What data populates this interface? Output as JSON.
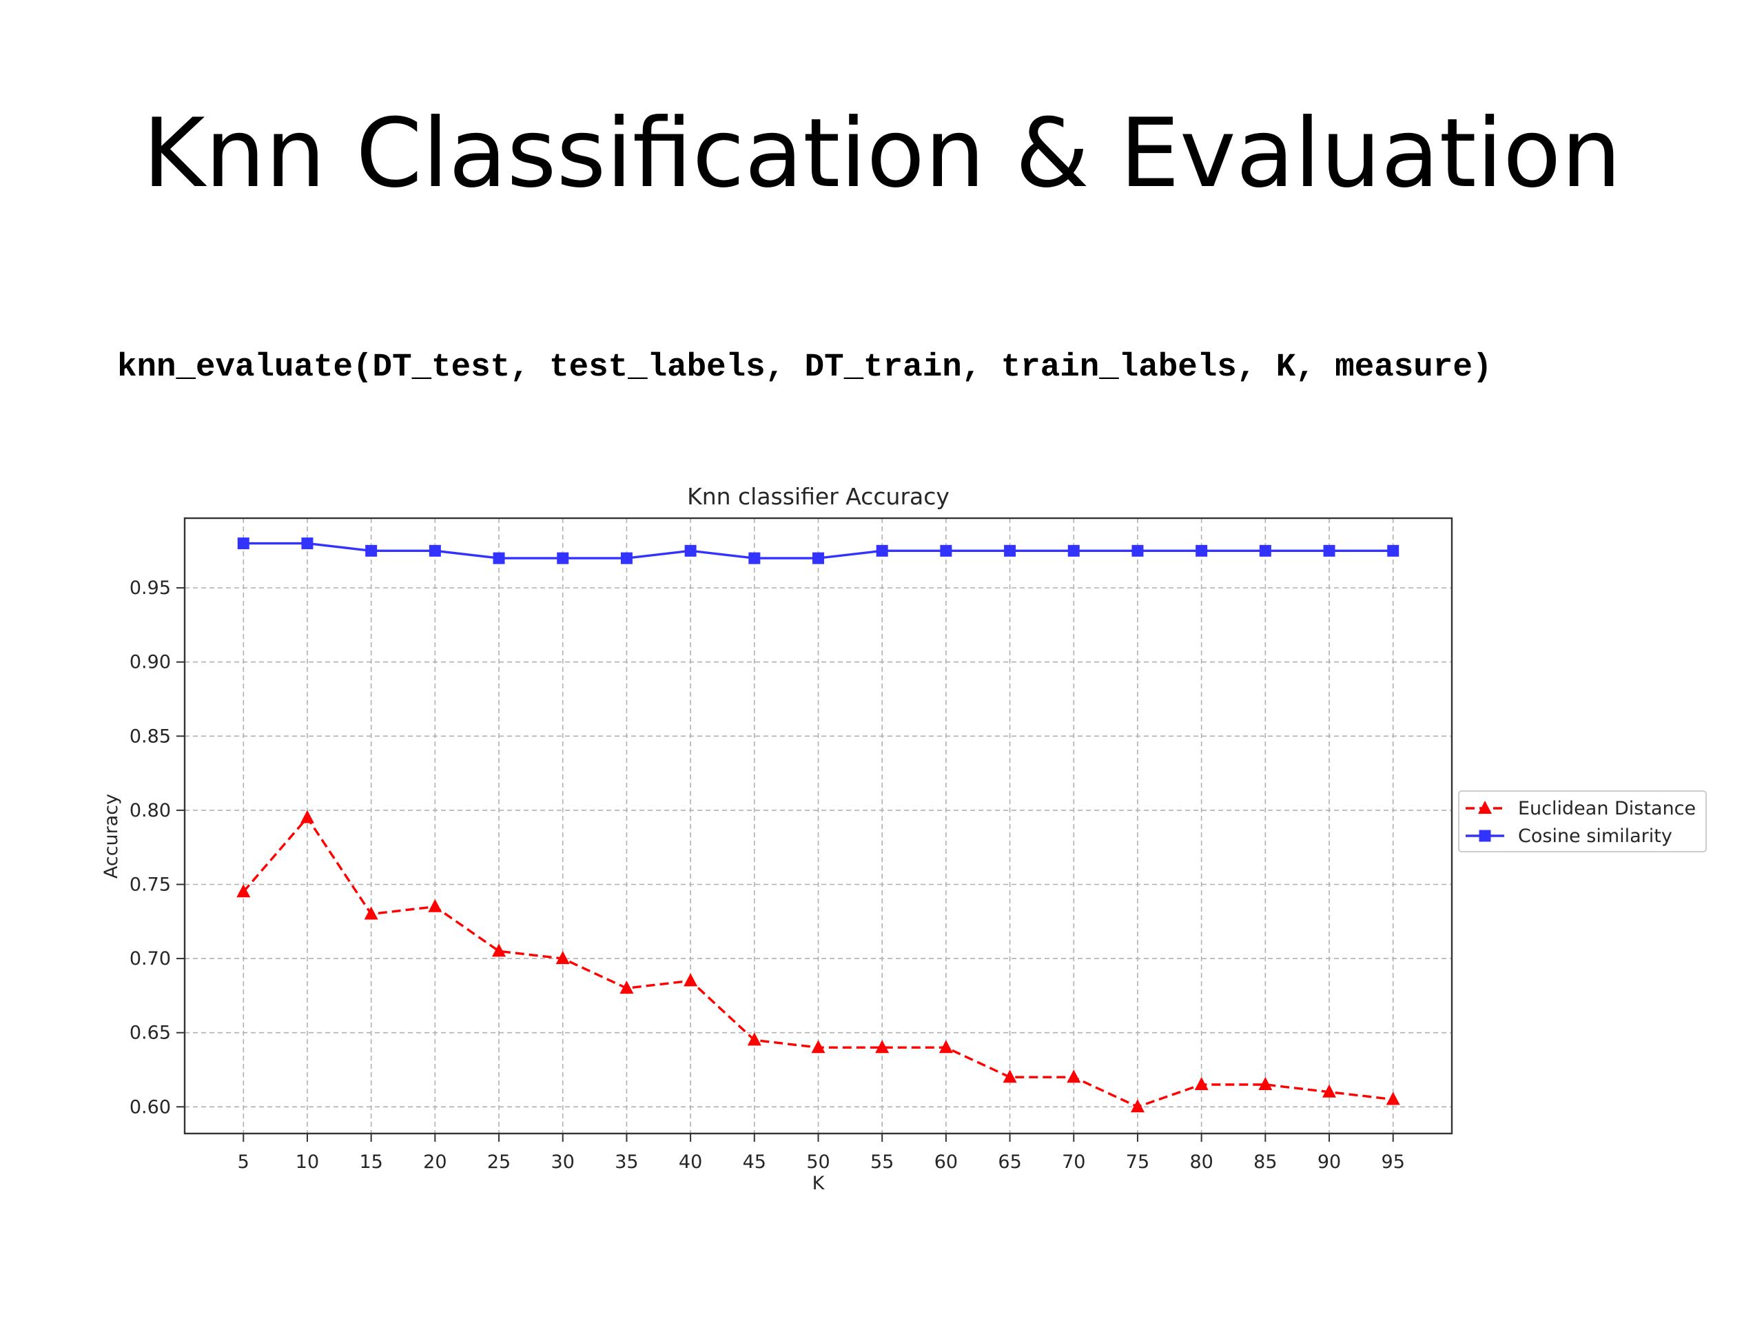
{
  "slide": {
    "title": "Knn Classification & Evaluation",
    "code": "knn_evaluate(DT_test, test_labels, DT_train, train_labels, K, measure)"
  },
  "chart_data": {
    "type": "line",
    "title": "Knn classifier Accuracy",
    "xlabel": "K",
    "ylabel": "Accuracy",
    "x": [
      5,
      10,
      15,
      20,
      25,
      30,
      35,
      40,
      45,
      50,
      55,
      60,
      65,
      70,
      75,
      80,
      85,
      90,
      95
    ],
    "yticks": [
      "0.60",
      "0.65",
      "0.70",
      "0.75",
      "0.80",
      "0.85",
      "0.90",
      "0.95"
    ],
    "xlim": [
      0.4,
      99.6
    ],
    "ylim": [
      0.582,
      0.997
    ],
    "grid": true,
    "legend_position": "outside-right",
    "series": [
      {
        "name": "Euclidean Distance",
        "color": "#ff0000",
        "line_style": "dashed",
        "marker": "triangle",
        "values": [
          0.745,
          0.795,
          0.73,
          0.735,
          0.705,
          0.7,
          0.68,
          0.685,
          0.645,
          0.64,
          0.64,
          0.64,
          0.62,
          0.62,
          0.6,
          0.615,
          0.615,
          0.61,
          0.605
        ]
      },
      {
        "name": "Cosine similarity",
        "color": "#3333ff",
        "line_style": "solid",
        "marker": "square",
        "values": [
          0.98,
          0.98,
          0.975,
          0.975,
          0.97,
          0.97,
          0.97,
          0.975,
          0.97,
          0.97,
          0.975,
          0.975,
          0.975,
          0.975,
          0.975,
          0.975,
          0.975,
          0.975,
          0.975
        ]
      }
    ]
  }
}
